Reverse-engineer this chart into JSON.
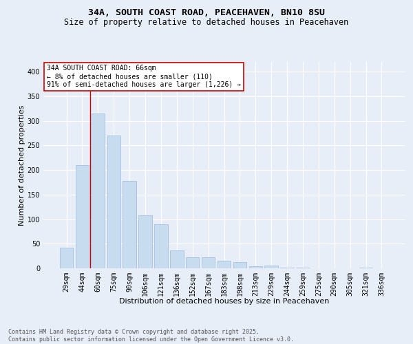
{
  "title_line1": "34A, SOUTH COAST ROAD, PEACEHAVEN, BN10 8SU",
  "title_line2": "Size of property relative to detached houses in Peacehaven",
  "xlabel": "Distribution of detached houses by size in Peacehaven",
  "ylabel": "Number of detached properties",
  "categories": [
    "29sqm",
    "44sqm",
    "60sqm",
    "75sqm",
    "90sqm",
    "106sqm",
    "121sqm",
    "136sqm",
    "152sqm",
    "167sqm",
    "183sqm",
    "198sqm",
    "213sqm",
    "229sqm",
    "244sqm",
    "259sqm",
    "275sqm",
    "290sqm",
    "305sqm",
    "321sqm",
    "336sqm"
  ],
  "values": [
    42,
    210,
    315,
    270,
    178,
    108,
    90,
    37,
    22,
    23,
    15,
    13,
    4,
    5,
    1,
    2,
    0,
    0,
    0,
    2,
    0
  ],
  "bar_color": "#c8dcf0",
  "bar_edge_color": "#9ab8d8",
  "vline_color": "#cc0000",
  "vline_x_idx": 1.5,
  "annotation_text": "34A SOUTH COAST ROAD: 66sqm\n← 8% of detached houses are smaller (110)\n91% of semi-detached houses are larger (1,226) →",
  "annotation_box_edgecolor": "#cc0000",
  "footer_text": "Contains HM Land Registry data © Crown copyright and database right 2025.\nContains public sector information licensed under the Open Government Licence v3.0.",
  "bg_color": "#e8eef8",
  "ylim": [
    0,
    420
  ],
  "yticks": [
    0,
    50,
    100,
    150,
    200,
    250,
    300,
    350,
    400
  ],
  "grid_color": "#ffffff",
  "title_fontsize": 9.5,
  "subtitle_fontsize": 8.5,
  "axis_label_fontsize": 8,
  "tick_fontsize": 7,
  "annotation_fontsize": 7,
  "footer_fontsize": 6
}
